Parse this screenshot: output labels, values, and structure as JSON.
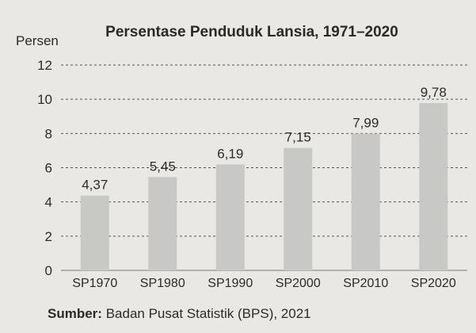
{
  "chart_data": {
    "type": "bar",
    "title": "Persentase Penduduk Lansia, 1971–2020",
    "ylabel": "Persen",
    "xlabel": "",
    "categories": [
      "SP1970",
      "SP1980",
      "SP1990",
      "SP2000",
      "SP2010",
      "SP2020"
    ],
    "values": [
      4.37,
      5.45,
      6.19,
      7.15,
      7.99,
      9.78
    ],
    "value_labels": [
      "4,37",
      "5,45",
      "6,19",
      "7,15",
      "7,99",
      "9,78"
    ],
    "ylim": [
      0,
      12
    ],
    "yticks": [
      0,
      2,
      4,
      6,
      8,
      10,
      12
    ],
    "grid": true,
    "bar_color": "#c8c8c6",
    "grid_color": "#555555"
  },
  "source": {
    "label": "Sumber:",
    "text": "Badan Pusat Statistik (BPS), 2021"
  }
}
